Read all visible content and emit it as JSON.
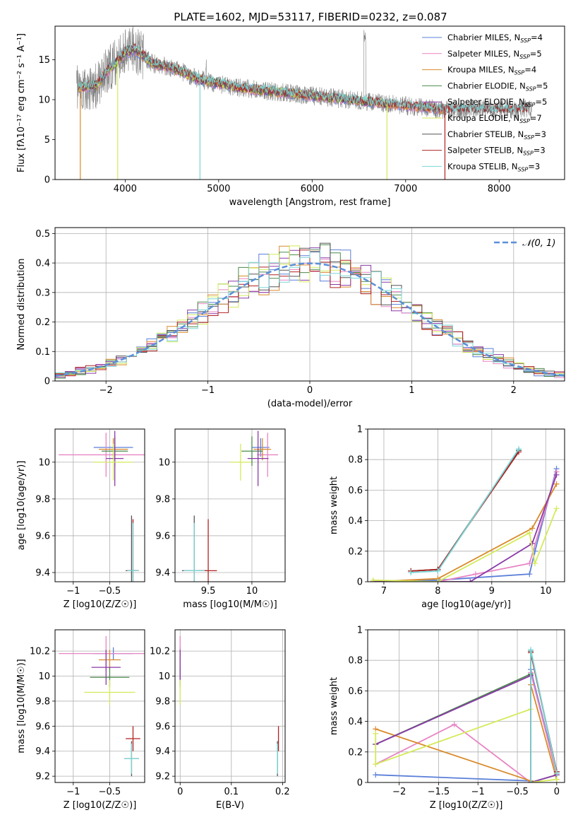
{
  "figure_title": "PLATE=1602, MJD=53117, FIBERID=0232, z=0.087",
  "colors": {
    "Chabrier MILES": "#5b7fd9",
    "Salpeter MILES": "#e884c4",
    "Kroupa MILES": "#d98a2a",
    "Chabrier ELODIE": "#4c8a4c",
    "Salpeter ELODIE": "#8a3aa8",
    "Kroupa ELODIE": "#d4ea5a",
    "Chabrier STELIB": "#555555",
    "Salpeter STELIB": "#b22222",
    "Kroupa STELIB": "#7ad6d6",
    "data": "#808080",
    "gauss": "#5b8fd9"
  },
  "chart_data": [
    {
      "id": "spectrum",
      "type": "line",
      "title": "PLATE=1602, MJD=53117, FIBERID=0232, z=0.087",
      "xlabel": "wavelength [Angstrom, rest frame]",
      "ylabel": "Flux [fλ10⁻¹⁷ erg cm⁻² s⁻¹ A⁻¹]",
      "xlim": [
        3250,
        8700
      ],
      "ylim": [
        0,
        19.2
      ],
      "xticks": [
        4000,
        5000,
        6000,
        7000,
        8000
      ],
      "yticks": [
        0,
        5,
        10,
        15
      ],
      "grid": false,
      "legend_position": "top-right",
      "legend": [
        "Chabrier MILES, N_SSP=4",
        "Salpeter MILES, N_SSP=5",
        "Kroupa MILES, N_SSP=4",
        "Chabrier ELODIE, N_SSP=5",
        "Salpeter ELODIE, N_SSP=5",
        "Kroupa ELODIE, N_SSP=7",
        "Chabrier STELIB, N_SSP=3",
        "Salpeter STELIB, N_SSP=3",
        "Kroupa STELIB, N_SSP=3"
      ],
      "continuum_x": [
        3500,
        3700,
        3800,
        3950,
        4000,
        4100,
        4300,
        4500,
        4800,
        5200,
        5600,
        6000,
        6400,
        6800,
        7200,
        7400
      ],
      "continuum_y": [
        11.5,
        11.8,
        13.5,
        15.2,
        16.0,
        16.3,
        14.5,
        14.0,
        12.5,
        11.5,
        11.0,
        10.5,
        10.0,
        9.5,
        9.0,
        8.8
      ]
    },
    {
      "id": "residuals",
      "type": "line",
      "xlabel": "(data-model)/error",
      "ylabel": "Normed distribution",
      "xlim": [
        -2.5,
        2.5
      ],
      "ylim": [
        0,
        0.52
      ],
      "xticks": [
        -2,
        -1,
        0,
        1,
        2
      ],
      "yticks": [
        0.0,
        0.1,
        0.2,
        0.3,
        0.4,
        0.5
      ],
      "grid": true,
      "legend_position": "top-right",
      "legend": [
        "𝒩(0, 1)"
      ],
      "bin_width": 0.1
    },
    {
      "id": "age-vs-z",
      "type": "scatter",
      "xlabel": "Z [log10(Z/Z☉)]",
      "ylabel": "age  [log10(age/yr)]",
      "xlim": [
        -1.25,
        -0.02
      ],
      "ylim": [
        9.35,
        10.18
      ],
      "xticks": [
        -1.0,
        -0.5
      ],
      "yticks": [
        9.4,
        9.6,
        9.8,
        10.0
      ],
      "grid": true,
      "points": [
        {
          "model": "Chabrier MILES",
          "x": -0.45,
          "y": 10.08,
          "xerr": 0.27,
          "yerr": 0.05
        },
        {
          "model": "Salpeter MILES",
          "x": -0.55,
          "y": 10.04,
          "xerr": 0.65,
          "yerr": 0.12
        },
        {
          "model": "Kroupa MILES",
          "x": -0.45,
          "y": 10.07,
          "xerr": 0.2,
          "yerr": 0.06
        },
        {
          "model": "Chabrier ELODIE",
          "x": -0.43,
          "y": 10.06,
          "xerr": 0.18,
          "yerr": 0.08
        },
        {
          "model": "Salpeter ELODIE",
          "x": -0.43,
          "y": 10.02,
          "xerr": 0.12,
          "yerr": 0.15
        },
        {
          "model": "Kroupa ELODIE",
          "x": -0.45,
          "y": 10.0,
          "xerr": 0.27,
          "yerr": 0.1
        },
        {
          "model": "Chabrier STELIB",
          "x": -0.2,
          "y": 9.41,
          "xerr": 0.08,
          "yerr": 0.3
        },
        {
          "model": "Salpeter STELIB",
          "x": -0.18,
          "y": 9.41,
          "xerr": 0.08,
          "yerr": 0.28
        },
        {
          "model": "Kroupa STELIB",
          "x": -0.18,
          "y": 9.41,
          "xerr": 0.08,
          "yerr": 0.26
        }
      ]
    },
    {
      "id": "age-vs-mass",
      "type": "scatter",
      "xlabel": "mass [log10(M/M☉)]",
      "ylabel": "",
      "xlim": [
        9.12,
        10.38
      ],
      "ylim": [
        9.35,
        10.18
      ],
      "xticks": [
        9.5,
        10.0
      ],
      "yticks": [
        9.4,
        9.6,
        9.8,
        10.0
      ],
      "grid": true,
      "points": [
        {
          "model": "Chabrier MILES",
          "x": 10.1,
          "y": 10.08,
          "xerr": 0.1,
          "yerr": 0.05
        },
        {
          "model": "Salpeter MILES",
          "x": 10.18,
          "y": 10.04,
          "xerr": 0.12,
          "yerr": 0.12
        },
        {
          "model": "Kroupa MILES",
          "x": 10.12,
          "y": 10.07,
          "xerr": 0.1,
          "yerr": 0.06
        },
        {
          "model": "Chabrier ELODIE",
          "x": 10.0,
          "y": 10.06,
          "xerr": 0.12,
          "yerr": 0.08
        },
        {
          "model": "Salpeter ELODIE",
          "x": 10.07,
          "y": 10.02,
          "xerr": 0.12,
          "yerr": 0.15
        },
        {
          "model": "Kroupa ELODIE",
          "x": 9.87,
          "y": 10.0,
          "xerr": 0.12,
          "yerr": 0.1
        },
        {
          "model": "Chabrier STELIB",
          "x": 9.34,
          "y": 9.41,
          "xerr": 0.14,
          "yerr": 0.3
        },
        {
          "model": "Salpeter STELIB",
          "x": 9.5,
          "y": 9.41,
          "xerr": 0.1,
          "yerr": 0.28
        },
        {
          "model": "Kroupa STELIB",
          "x": 9.34,
          "y": 9.41,
          "xerr": 0.12,
          "yerr": 0.26
        }
      ]
    },
    {
      "id": "mass-weight-vs-age",
      "type": "line",
      "xlabel": "age  [log10(age/yr)]",
      "ylabel": "mass weight",
      "xlim": [
        6.7,
        10.35
      ],
      "ylim": [
        0,
        1.0
      ],
      "xticks": [
        7,
        8,
        9,
        10
      ],
      "yticks": [
        0.0,
        0.2,
        0.4,
        0.6,
        0.8,
        1.0
      ],
      "grid": true,
      "series": [
        {
          "name": "Chabrier MILES",
          "x": [
            6.8,
            8.0,
            9.7,
            9.8,
            10.2
          ],
          "y": [
            0.0,
            0.01,
            0.05,
            0.2,
            0.74
          ]
        },
        {
          "name": "Salpeter MILES",
          "x": [
            6.8,
            8.0,
            8.7,
            9.7,
            10.2
          ],
          "y": [
            0.0,
            0.0,
            0.05,
            0.12,
            0.72
          ]
        },
        {
          "name": "Kroupa MILES",
          "x": [
            6.8,
            8.0,
            9.75,
            10.2
          ],
          "y": [
            0.0,
            0.02,
            0.35,
            0.64
          ]
        },
        {
          "name": "Chabrier ELODIE",
          "x": [
            7.5,
            8.0,
            9.5
          ],
          "y": [
            0.07,
            0.08,
            0.86
          ]
        },
        {
          "name": "Salpeter ELODIE",
          "x": [
            6.8,
            8.6,
            9.75,
            10.2
          ],
          "y": [
            0.0,
            0.0,
            0.25,
            0.7
          ]
        },
        {
          "name": "Kroupa ELODIE",
          "x": [
            6.8,
            8.0,
            9.7,
            9.8,
            10.2
          ],
          "y": [
            0.01,
            0.0,
            0.32,
            0.12,
            0.48
          ]
        },
        {
          "name": "Chabrier STELIB",
          "x": [
            7.5,
            8.0,
            9.5
          ],
          "y": [
            0.07,
            0.08,
            0.86
          ]
        },
        {
          "name": "Salpeter STELIB",
          "x": [
            7.5,
            8.0,
            9.5
          ],
          "y": [
            0.07,
            0.08,
            0.85
          ]
        },
        {
          "name": "Kroupa STELIB",
          "x": [
            7.5,
            8.0,
            9.5
          ],
          "y": [
            0.06,
            0.07,
            0.87
          ]
        }
      ]
    },
    {
      "id": "mass-vs-z",
      "type": "scatter",
      "xlabel": "Z [log10(Z/Z☉)]",
      "ylabel": "mass [log10(M/M☉)]",
      "xlim": [
        -1.25,
        -0.02
      ],
      "ylim": [
        9.15,
        10.37
      ],
      "xticks": [
        -1.0,
        -0.5
      ],
      "yticks": [
        9.2,
        9.4,
        9.6,
        9.8,
        10.0,
        10.2
      ],
      "grid": true,
      "points": [
        {
          "model": "Chabrier MILES",
          "x": -0.45,
          "y": 10.18,
          "xerr": 0.27,
          "yerr": 0.05
        },
        {
          "model": "Salpeter MILES",
          "x": -0.55,
          "y": 10.18,
          "xerr": 0.65,
          "yerr": 0.14
        },
        {
          "model": "Kroupa MILES",
          "x": -0.5,
          "y": 10.13,
          "xerr": 0.15,
          "yerr": 0.08
        },
        {
          "model": "Chabrier ELODIE",
          "x": -0.5,
          "y": 9.99,
          "xerr": 0.27,
          "yerr": 0.08
        },
        {
          "model": "Salpeter ELODIE",
          "x": -0.55,
          "y": 10.07,
          "xerr": 0.2,
          "yerr": 0.14
        },
        {
          "model": "Kroupa ELODIE",
          "x": -0.5,
          "y": 9.87,
          "xerr": 0.35,
          "yerr": 0.1
        },
        {
          "model": "Chabrier STELIB",
          "x": -0.2,
          "y": 9.34,
          "xerr": 0.1,
          "yerr": 0.14
        },
        {
          "model": "Salpeter STELIB",
          "x": -0.18,
          "y": 9.5,
          "xerr": 0.1,
          "yerr": 0.1
        },
        {
          "model": "Kroupa STELIB",
          "x": -0.2,
          "y": 9.34,
          "xerr": 0.1,
          "yerr": 0.12
        }
      ]
    },
    {
      "id": "mass-vs-ebv",
      "type": "scatter",
      "xlabel": "E(B-V)",
      "ylabel": "",
      "xlim": [
        -0.01,
        0.205
      ],
      "ylim": [
        9.15,
        10.37
      ],
      "xticks": [
        0.0,
        0.1,
        0.2
      ],
      "yticks": [
        9.2,
        9.4,
        9.6,
        9.8,
        10.0,
        10.2
      ],
      "grid": true,
      "points": [
        {
          "model": "Chabrier MILES",
          "x": 0.0,
          "y": 10.18,
          "xerr": 0.0,
          "yerr": 0.05
        },
        {
          "model": "Salpeter MILES",
          "x": 0.0,
          "y": 10.18,
          "xerr": 0.0,
          "yerr": 0.14
        },
        {
          "model": "Kroupa MILES",
          "x": 0.0,
          "y": 10.13,
          "xerr": 0.0,
          "yerr": 0.08
        },
        {
          "model": "Chabrier ELODIE",
          "x": 0.0,
          "y": 9.99,
          "xerr": 0.0,
          "yerr": 0.08
        },
        {
          "model": "Salpeter ELODIE",
          "x": 0.0,
          "y": 10.07,
          "xerr": 0.0,
          "yerr": 0.14
        },
        {
          "model": "Kroupa ELODIE",
          "x": 0.0,
          "y": 9.87,
          "xerr": 0.0,
          "yerr": 0.1
        },
        {
          "model": "Chabrier STELIB",
          "x": 0.19,
          "y": 9.34,
          "xerr": 0.0,
          "yerr": 0.14
        },
        {
          "model": "Salpeter STELIB",
          "x": 0.192,
          "y": 9.5,
          "xerr": 0.0,
          "yerr": 0.1
        },
        {
          "model": "Kroupa STELIB",
          "x": 0.19,
          "y": 9.34,
          "xerr": 0.0,
          "yerr": 0.12
        }
      ]
    },
    {
      "id": "mass-weight-vs-z",
      "type": "line",
      "xlabel": "Z [log10(Z/Z☉)]",
      "ylabel": "mass weight",
      "xlim": [
        -2.4,
        0.1
      ],
      "ylim": [
        0,
        1.0
      ],
      "xticks": [
        -2.0,
        -1.5,
        -1.0,
        -0.5,
        0.0
      ],
      "yticks": [
        0.0,
        0.2,
        0.4,
        0.6,
        0.8,
        1.0
      ],
      "grid": true,
      "series": [
        {
          "name": "Chabrier MILES",
          "x": [
            -2.3,
            -0.33,
            -0.33,
            0.0
          ],
          "y": [
            0.05,
            0.01,
            0.74,
            0.06
          ]
        },
        {
          "name": "Salpeter MILES",
          "x": [
            -2.3,
            -1.3,
            -0.33,
            -0.33,
            0.0
          ],
          "y": [
            0.12,
            0.38,
            0.0,
            0.72,
            0.05
          ]
        },
        {
          "name": "Kroupa MILES",
          "x": [
            -2.3,
            -0.33,
            -0.33,
            0.0
          ],
          "y": [
            0.35,
            0.01,
            0.64,
            0.02
          ]
        },
        {
          "name": "Chabrier ELODIE",
          "x": [
            -2.3,
            -0.33,
            -0.33,
            0.0
          ],
          "y": [
            0.25,
            0.71,
            0.0,
            0.05
          ]
        },
        {
          "name": "Salpeter ELODIE",
          "x": [
            -2.3,
            -0.33,
            -0.33,
            0.0
          ],
          "y": [
            0.25,
            0.7,
            0.0,
            0.05
          ]
        },
        {
          "name": "Kroupa ELODIE",
          "x": [
            -2.3,
            -2.3,
            -0.33,
            -0.33,
            0.0
          ],
          "y": [
            0.32,
            0.12,
            0.48,
            0.0,
            0.02
          ]
        },
        {
          "name": "Chabrier STELIB",
          "x": [
            -0.33,
            -0.33,
            0.0
          ],
          "y": [
            0.0,
            0.86,
            0.07
          ]
        },
        {
          "name": "Salpeter STELIB",
          "x": [
            -0.33,
            -0.33,
            0.0
          ],
          "y": [
            0.0,
            0.85,
            0.07
          ]
        },
        {
          "name": "Kroupa STELIB",
          "x": [
            -0.33,
            -0.33,
            0.0
          ],
          "y": [
            0.0,
            0.87,
            0.06
          ]
        }
      ]
    }
  ]
}
